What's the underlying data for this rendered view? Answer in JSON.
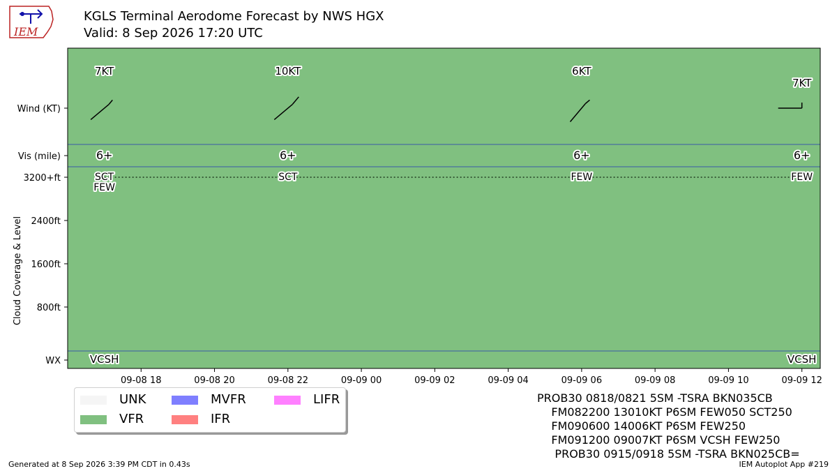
{
  "header": {
    "title": "KGLS Terminal Aerodome Forecast by NWS HGX",
    "subtitle": "Valid: 8 Sep 2026 17:20 UTC"
  },
  "logo": {
    "text": "IEM"
  },
  "chart_data": {
    "type": "table",
    "background_category": "VFR",
    "x_tick_labels": [
      "09-08 18",
      "09-08 20",
      "09-08 22",
      "09-09 00",
      "09-09 02",
      "09-09 04",
      "09-09 06",
      "09-09 08",
      "09-09 10",
      "09-09 12"
    ],
    "x_tick_hours": [
      18,
      20,
      22,
      24,
      26,
      28,
      30,
      32,
      34,
      36
    ],
    "x_range_hours": [
      16.0,
      36.5
    ],
    "row_labels": {
      "wind": "Wind (KT)",
      "vis": "Vis (mile)",
      "wx": "WX"
    },
    "cloud_axis": {
      "label": "Cloud Coverage & Level",
      "tick_labels": [
        "3200+ft",
        "2400ft",
        "1600ft",
        "800ft"
      ],
      "tick_values": [
        3200,
        2400,
        1600,
        800
      ],
      "range": [
        0,
        3200
      ]
    },
    "forecasts": [
      {
        "hour": 17.0,
        "wind_dir": 130,
        "wind_label": "7KT",
        "vis": "6+",
        "clouds": [
          "SCT",
          "FEW"
        ],
        "wx": "VCSH"
      },
      {
        "hour": 22.0,
        "wind_dir": 130,
        "wind_label": "10KT",
        "vis": "6+",
        "clouds": [
          "SCT"
        ],
        "wx": ""
      },
      {
        "hour": 30.0,
        "wind_dir": 140,
        "wind_label": "6KT",
        "vis": "6+",
        "clouds": [
          "FEW"
        ],
        "wx": ""
      },
      {
        "hour": 36.0,
        "wind_dir": 90,
        "wind_label": "7KT",
        "vis": "6+",
        "clouds": [
          "FEW"
        ],
        "wx": "VCSH"
      }
    ],
    "legend": [
      {
        "label": "UNK",
        "color": "#f5f5f5"
      },
      {
        "label": "VFR",
        "color": "#80c080"
      },
      {
        "label": "MVFR",
        "color": "#7f7fff"
      },
      {
        "label": "IFR",
        "color": "#ff8080"
      },
      {
        "label": "LIFR",
        "color": "#ff80ff"
      }
    ]
  },
  "taf_text": [
    "PROB30 0818/0821 5SM -TSRA BKN035CB",
    "    FM082200 13010KT P6SM FEW050 SCT250",
    "    FM090600 14006KT P6SM FEW250",
    "    FM091200 09007KT P6SM VCSH FEW250",
    "     PROB30 0915/0918 5SM -TSRA BKN025CB="
  ],
  "footer": {
    "left": "Generated at 8 Sep 2026 3:39 PM CDT in 0.43s",
    "right": "IEM Autoplot App #219"
  }
}
